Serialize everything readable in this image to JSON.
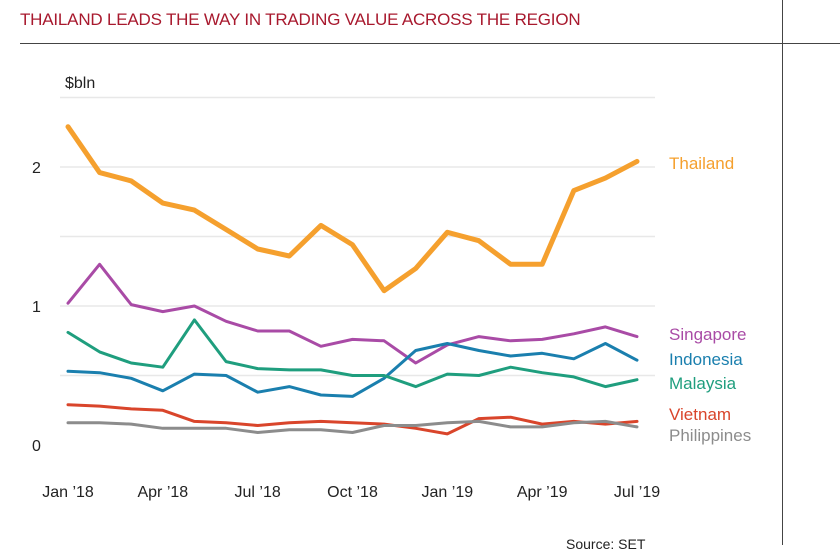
{
  "chart_data": {
    "type": "line",
    "title": "THAILAND LEADS THE WAY IN TRADING VALUE ACROSS THE REGION",
    "ylabel": "$bln",
    "ylim": [
      0,
      2.5
    ],
    "yticks": [
      0,
      1,
      2
    ],
    "x_tick_labels": [
      "Jan ’18",
      "Apr ’18",
      "Jul ’18",
      "Oct ’18",
      "Jan ’19",
      "Apr ’19",
      "Jul ’19"
    ],
    "x_tick_index": [
      0,
      3,
      6,
      9,
      12,
      15,
      18
    ],
    "n_points": 19,
    "series": [
      {
        "name": "Thailand",
        "color": "#f5a02e",
        "values": [
          2.29,
          1.96,
          1.9,
          1.74,
          1.69,
          1.55,
          1.41,
          1.36,
          1.58,
          1.44,
          1.11,
          1.27,
          1.53,
          1.47,
          1.3,
          1.3,
          1.83,
          1.92,
          2.04
        ]
      },
      {
        "name": "Singapore",
        "color": "#a94ba6",
        "values": [
          1.02,
          1.3,
          1.01,
          0.96,
          1.0,
          0.89,
          0.82,
          0.82,
          0.71,
          0.76,
          0.75,
          0.59,
          0.72,
          0.78,
          0.75,
          0.76,
          0.8,
          0.85,
          0.78
        ]
      },
      {
        "name": "Indonesia",
        "color": "#1a7fae",
        "values": [
          0.53,
          0.52,
          0.48,
          0.39,
          0.51,
          0.5,
          0.38,
          0.42,
          0.36,
          0.35,
          0.48,
          0.68,
          0.73,
          0.68,
          0.64,
          0.66,
          0.62,
          0.73,
          0.61
        ]
      },
      {
        "name": "Malaysia",
        "color": "#1f9e7e",
        "values": [
          0.81,
          0.67,
          0.59,
          0.56,
          0.9,
          0.6,
          0.55,
          0.54,
          0.54,
          0.5,
          0.5,
          0.42,
          0.51,
          0.5,
          0.56,
          0.52,
          0.49,
          0.42,
          0.47
        ]
      },
      {
        "name": "Vietnam",
        "color": "#d9452b",
        "values": [
          0.29,
          0.28,
          0.26,
          0.25,
          0.17,
          0.16,
          0.14,
          0.16,
          0.17,
          0.16,
          0.15,
          0.12,
          0.08,
          0.19,
          0.2,
          0.15,
          0.17,
          0.15,
          0.17
        ]
      },
      {
        "name": "Philippines",
        "color": "#8c8c8c",
        "values": [
          0.16,
          0.16,
          0.15,
          0.12,
          0.12,
          0.12,
          0.09,
          0.11,
          0.11,
          0.09,
          0.14,
          0.14,
          0.16,
          0.17,
          0.13,
          0.13,
          0.16,
          0.17,
          0.13
        ]
      }
    ],
    "source": "Source: SET"
  }
}
